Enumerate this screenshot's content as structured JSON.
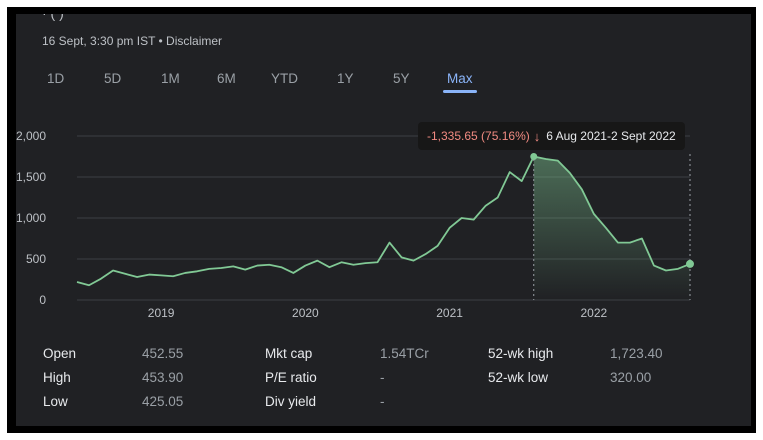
{
  "header": {
    "ticker_partial": "·  (       )",
    "timestamp": "16 Sept, 3:30 pm IST • Disclaimer"
  },
  "ranges": [
    "1D",
    "5D",
    "1M",
    "6M",
    "YTD",
    "1Y",
    "5Y",
    "Max"
  ],
  "selected_range": "Max",
  "tooltip": {
    "change": "-1,335.65 (75.16%)",
    "arrow": "↓",
    "period": "6 Aug 2021-2 Sept 2022"
  },
  "colors": {
    "line": "#81c995",
    "background": "#202124",
    "accent": "#8ab4f8",
    "negative": "#f28b82"
  },
  "chart_data": {
    "type": "line",
    "x_tick_labels": [
      "2019",
      "2020",
      "2021",
      "2022"
    ],
    "y_tick_labels": [
      "0",
      "500",
      "1,000",
      "1,500",
      "2,000"
    ],
    "ylim": [
      0,
      2000
    ],
    "xlim": [
      "2018-06",
      "2022-09"
    ],
    "grid": true,
    "highlight": {
      "start": "2021-08",
      "end": "2022-09"
    },
    "series": [
      {
        "x": [
          "2018-06",
          "2018-07",
          "2018-08",
          "2018-09",
          "2018-10",
          "2018-11",
          "2018-12",
          "2019-01",
          "2019-02",
          "2019-03",
          "2019-04",
          "2019-05",
          "2019-06",
          "2019-07",
          "2019-08",
          "2019-09",
          "2019-10",
          "2019-11",
          "2019-12",
          "2020-01",
          "2020-02",
          "2020-03",
          "2020-04",
          "2020-05",
          "2020-06",
          "2020-07",
          "2020-08",
          "2020-09",
          "2020-10",
          "2020-11",
          "2020-12",
          "2021-01",
          "2021-02",
          "2021-03",
          "2021-04",
          "2021-05",
          "2021-06",
          "2021-07",
          "2021-08",
          "2021-09",
          "2021-10",
          "2021-11",
          "2021-12",
          "2022-01",
          "2022-02",
          "2022-03",
          "2022-04",
          "2022-05",
          "2022-06",
          "2022-07",
          "2022-08",
          "2022-09"
        ],
        "values": [
          220,
          180,
          260,
          360,
          320,
          280,
          310,
          300,
          290,
          330,
          350,
          380,
          390,
          410,
          370,
          420,
          430,
          400,
          330,
          420,
          480,
          400,
          460,
          430,
          450,
          460,
          700,
          520,
          480,
          560,
          660,
          880,
          1000,
          980,
          1150,
          1250,
          1560,
          1450,
          1750,
          1720,
          1700,
          1550,
          1350,
          1050,
          880,
          700,
          700,
          750,
          420,
          360,
          380,
          440
        ]
      }
    ]
  },
  "stats": [
    {
      "label": "Open",
      "value": "452.55"
    },
    {
      "label": "High",
      "value": "453.90"
    },
    {
      "label": "Low",
      "value": "425.05"
    },
    {
      "label": "Mkt cap",
      "value": "1.54TCr"
    },
    {
      "label": "P/E ratio",
      "value": "-"
    },
    {
      "label": "Div yield",
      "value": "-"
    },
    {
      "label": "52-wk high",
      "value": "1,723.40"
    },
    {
      "label": "52-wk low",
      "value": "320.00"
    }
  ]
}
